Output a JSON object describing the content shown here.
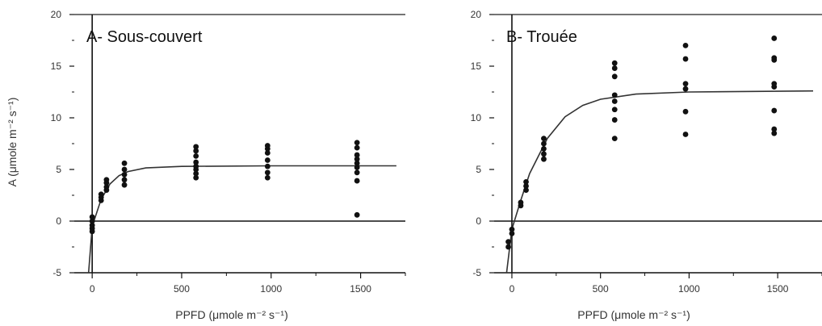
{
  "chart_data": [
    {
      "type": "scatter",
      "title": "A- Sous-couvert",
      "xlabel": "PPFD (μmole m⁻² s⁻¹)",
      "ylabel": "A (μmole m⁻² s⁻¹)",
      "xlim": [
        -100,
        1750
      ],
      "ylim": [
        -5,
        20
      ],
      "x_ticks": [
        "0",
        "500",
        "1000",
        "1500"
      ],
      "y_ticks": [
        "-5",
        "0",
        "5",
        "10",
        "15",
        "20"
      ],
      "points": [
        [
          0,
          -1
        ],
        [
          0,
          -0.7
        ],
        [
          0,
          -0.4
        ],
        [
          0,
          0
        ],
        [
          0,
          0.4
        ],
        [
          50,
          2
        ],
        [
          50,
          2.3
        ],
        [
          50,
          2.6
        ],
        [
          80,
          3
        ],
        [
          80,
          3.3
        ],
        [
          80,
          3.7
        ],
        [
          80,
          4
        ],
        [
          180,
          3.5
        ],
        [
          180,
          4
        ],
        [
          180,
          4.5
        ],
        [
          180,
          5
        ],
        [
          180,
          5.6
        ],
        [
          580,
          4.2
        ],
        [
          580,
          4.6
        ],
        [
          580,
          5
        ],
        [
          580,
          5.3
        ],
        [
          580,
          5.7
        ],
        [
          580,
          6.3
        ],
        [
          580,
          6.8
        ],
        [
          580,
          7.2
        ],
        [
          980,
          4.2
        ],
        [
          980,
          4.7
        ],
        [
          980,
          5.3
        ],
        [
          980,
          5.9
        ],
        [
          980,
          6.6
        ],
        [
          980,
          7
        ],
        [
          980,
          7.3
        ],
        [
          1480,
          0.6
        ],
        [
          1480,
          3.9
        ],
        [
          1480,
          4.7
        ],
        [
          1480,
          5.2
        ],
        [
          1480,
          5.6
        ],
        [
          1480,
          6
        ],
        [
          1480,
          6.4
        ],
        [
          1480,
          7.1
        ],
        [
          1480,
          7.6
        ]
      ],
      "fit": [
        [
          -20,
          -5
        ],
        [
          0,
          -0.5
        ],
        [
          50,
          2.1
        ],
        [
          100,
          3.6
        ],
        [
          150,
          4.4
        ],
        [
          200,
          4.8
        ],
        [
          300,
          5.15
        ],
        [
          500,
          5.3
        ],
        [
          1000,
          5.35
        ],
        [
          1700,
          5.35
        ]
      ]
    },
    {
      "type": "scatter",
      "title": "B- Trouée",
      "xlabel": "PPFD (μmole m⁻² s⁻¹)",
      "ylabel": "",
      "xlim": [
        -100,
        1750
      ],
      "ylim": [
        -5,
        20
      ],
      "x_ticks": [
        "0",
        "500",
        "1000",
        "1500"
      ],
      "y_ticks": [
        "-5",
        "0",
        "5",
        "10",
        "15",
        "20"
      ],
      "points": [
        [
          -20,
          -2.5
        ],
        [
          -20,
          -2
        ],
        [
          0,
          -1.2
        ],
        [
          0,
          -0.8
        ],
        [
          50,
          1.5
        ],
        [
          50,
          1.8
        ],
        [
          80,
          3
        ],
        [
          80,
          3.4
        ],
        [
          80,
          3.8
        ],
        [
          180,
          6
        ],
        [
          180,
          6.5
        ],
        [
          180,
          7
        ],
        [
          180,
          7.5
        ],
        [
          180,
          8
        ],
        [
          580,
          8
        ],
        [
          580,
          9.8
        ],
        [
          580,
          10.8
        ],
        [
          580,
          11.6
        ],
        [
          580,
          12.2
        ],
        [
          580,
          14
        ],
        [
          580,
          14.8
        ],
        [
          580,
          15.3
        ],
        [
          980,
          8.4
        ],
        [
          980,
          10.6
        ],
        [
          980,
          12.8
        ],
        [
          980,
          13.3
        ],
        [
          980,
          15.7
        ],
        [
          980,
          17
        ],
        [
          1480,
          8.5
        ],
        [
          1480,
          8.9
        ],
        [
          1480,
          10.7
        ],
        [
          1480,
          13
        ],
        [
          1480,
          13.3
        ],
        [
          1480,
          15.6
        ],
        [
          1480,
          15.8
        ],
        [
          1480,
          17.7
        ]
      ],
      "fit": [
        [
          -30,
          -5
        ],
        [
          0,
          -0.8
        ],
        [
          50,
          2
        ],
        [
          100,
          4.6
        ],
        [
          200,
          8
        ],
        [
          300,
          10.1
        ],
        [
          400,
          11.2
        ],
        [
          500,
          11.8
        ],
        [
          700,
          12.3
        ],
        [
          1000,
          12.5
        ],
        [
          1700,
          12.6
        ]
      ]
    }
  ]
}
